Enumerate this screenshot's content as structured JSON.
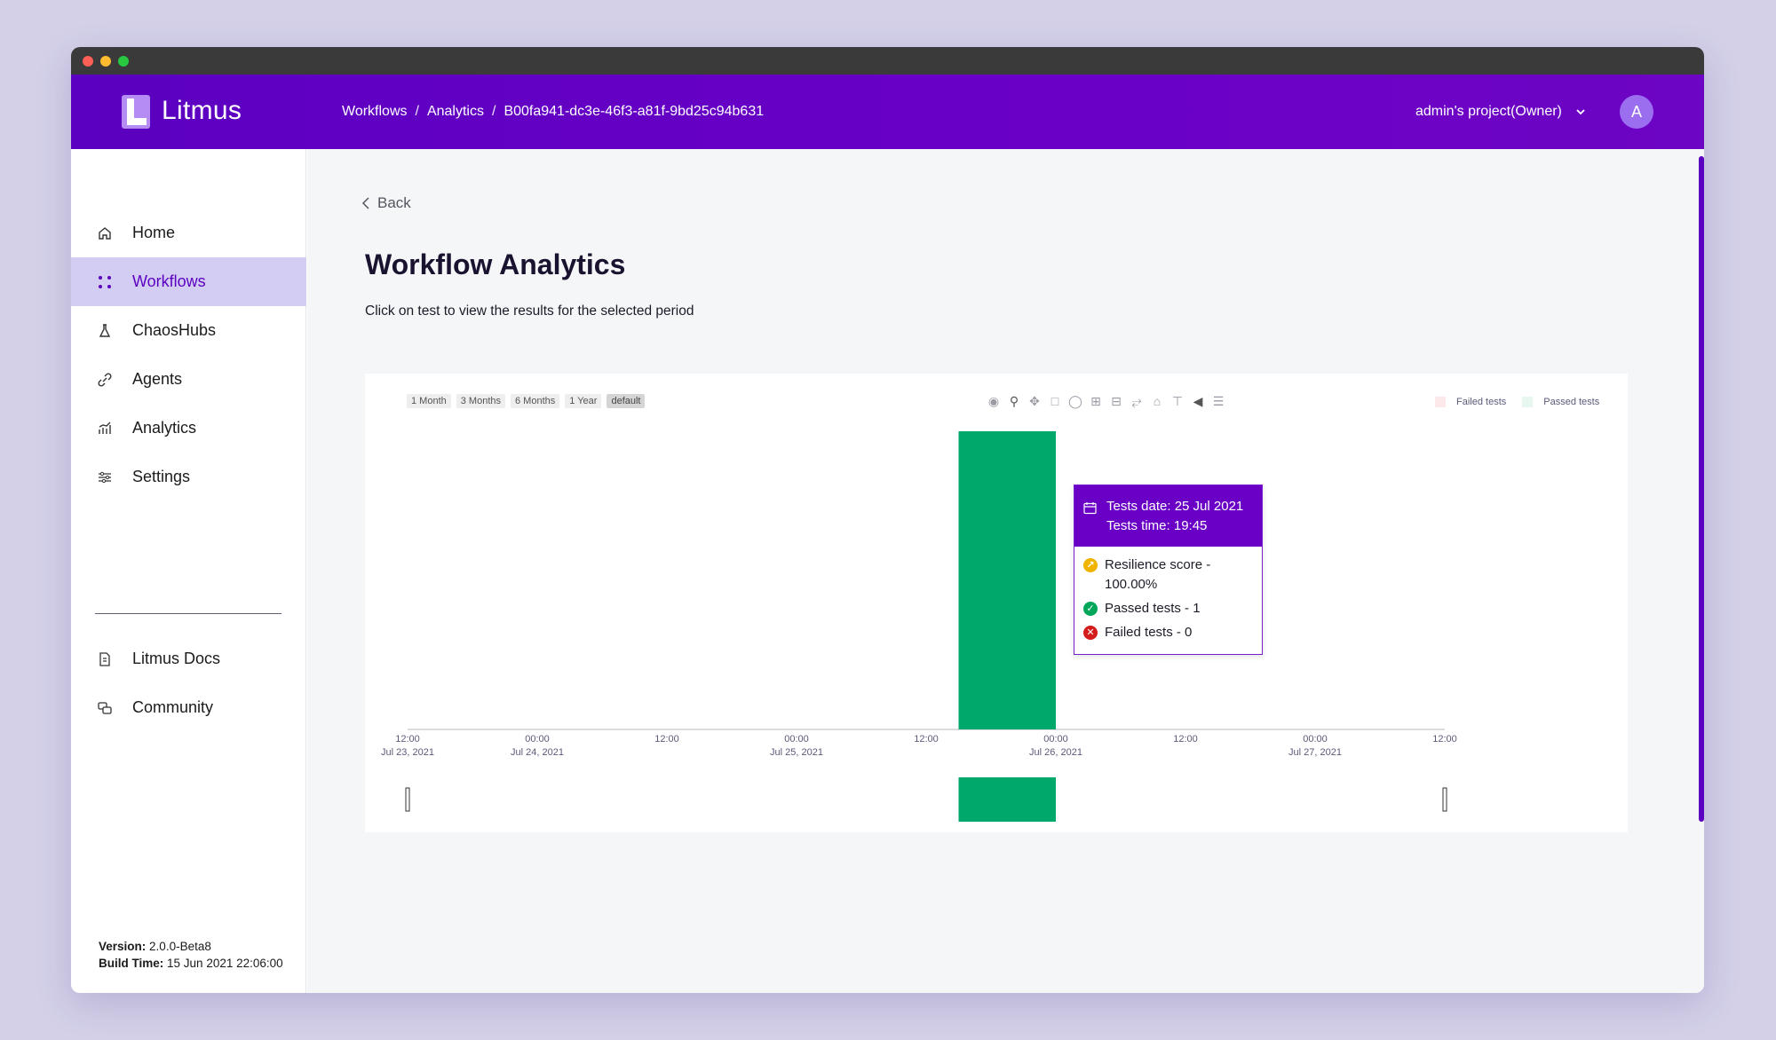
{
  "app": {
    "brand": "Litmus",
    "project": "admin's project(Owner)",
    "avatar_initial": "A"
  },
  "breadcrumb": [
    "Workflows",
    "/",
    "Analytics",
    "/",
    "B00fa941-dc3e-46f3-a81f-9bd25c94b631"
  ],
  "sidebar": {
    "items": [
      {
        "label": "Home",
        "icon": "home-icon"
      },
      {
        "label": "Workflows",
        "icon": "workflows-icon",
        "active": true
      },
      {
        "label": "ChaosHubs",
        "icon": "flask-icon"
      },
      {
        "label": "Agents",
        "icon": "link-icon"
      },
      {
        "label": "Analytics",
        "icon": "analytics-icon"
      },
      {
        "label": "Settings",
        "icon": "settings-icon"
      },
      {
        "label": "Litmus Docs",
        "icon": "document-icon"
      },
      {
        "label": "Community",
        "icon": "community-icon"
      }
    ],
    "version_label": "Version:",
    "version_value": "2.0.0-Beta8",
    "build_label": "Build Time:",
    "build_value": "15 Jun 2021 22:06:00"
  },
  "main": {
    "back_label": "Back",
    "title": "Workflow Analytics",
    "subtitle": "Click on test to view the results for the selected period"
  },
  "chart": {
    "range_buttons": [
      "1 Month",
      "3 Months",
      "6 Months",
      "1 Year",
      "default"
    ],
    "active_range": "default",
    "colors": {
      "passed": "#00a86b",
      "failed": "#fde8ea",
      "passed_legend": "#e6f7f0",
      "accent": "#6a00c6"
    },
    "tooltip": {
      "date_line": "Tests date: 25 Jul 2021",
      "time_line": "Tests time: 19:45",
      "score": "Resilience score - 100.00%",
      "passed": "Passed tests - 1",
      "failed": "Failed tests - 0"
    }
  },
  "chart_data": {
    "type": "bar",
    "x_ticks": [
      {
        "time": "12:00",
        "date": "Jul 23, 2021"
      },
      {
        "time": "00:00",
        "date": "Jul 24, 2021"
      },
      {
        "time": "12:00",
        "date": ""
      },
      {
        "time": "00:00",
        "date": "Jul 25, 2021"
      },
      {
        "time": "12:00",
        "date": ""
      },
      {
        "time": "00:00",
        "date": "Jul 26, 2021"
      },
      {
        "time": "12:00",
        "date": ""
      },
      {
        "time": "00:00",
        "date": "Jul 27, 2021"
      },
      {
        "time": "12:00",
        "date": ""
      }
    ],
    "x_range": [
      "2021-07-23 12:00",
      "2021-07-27 12:00"
    ],
    "series": [
      {
        "name": "Failed tests",
        "color": "#fde8ea",
        "points": [
          {
            "x": "2021-07-25 19:45",
            "y": 0
          }
        ]
      },
      {
        "name": "Passed tests",
        "color": "#00a86b",
        "points": [
          {
            "x": "2021-07-25 19:45",
            "y": 1
          }
        ]
      }
    ],
    "bar_span": [
      "2021-07-25 15:00",
      "2021-07-26 00:00"
    ],
    "ylim": [
      0,
      1
    ],
    "legend": "top-right",
    "grid": false
  }
}
